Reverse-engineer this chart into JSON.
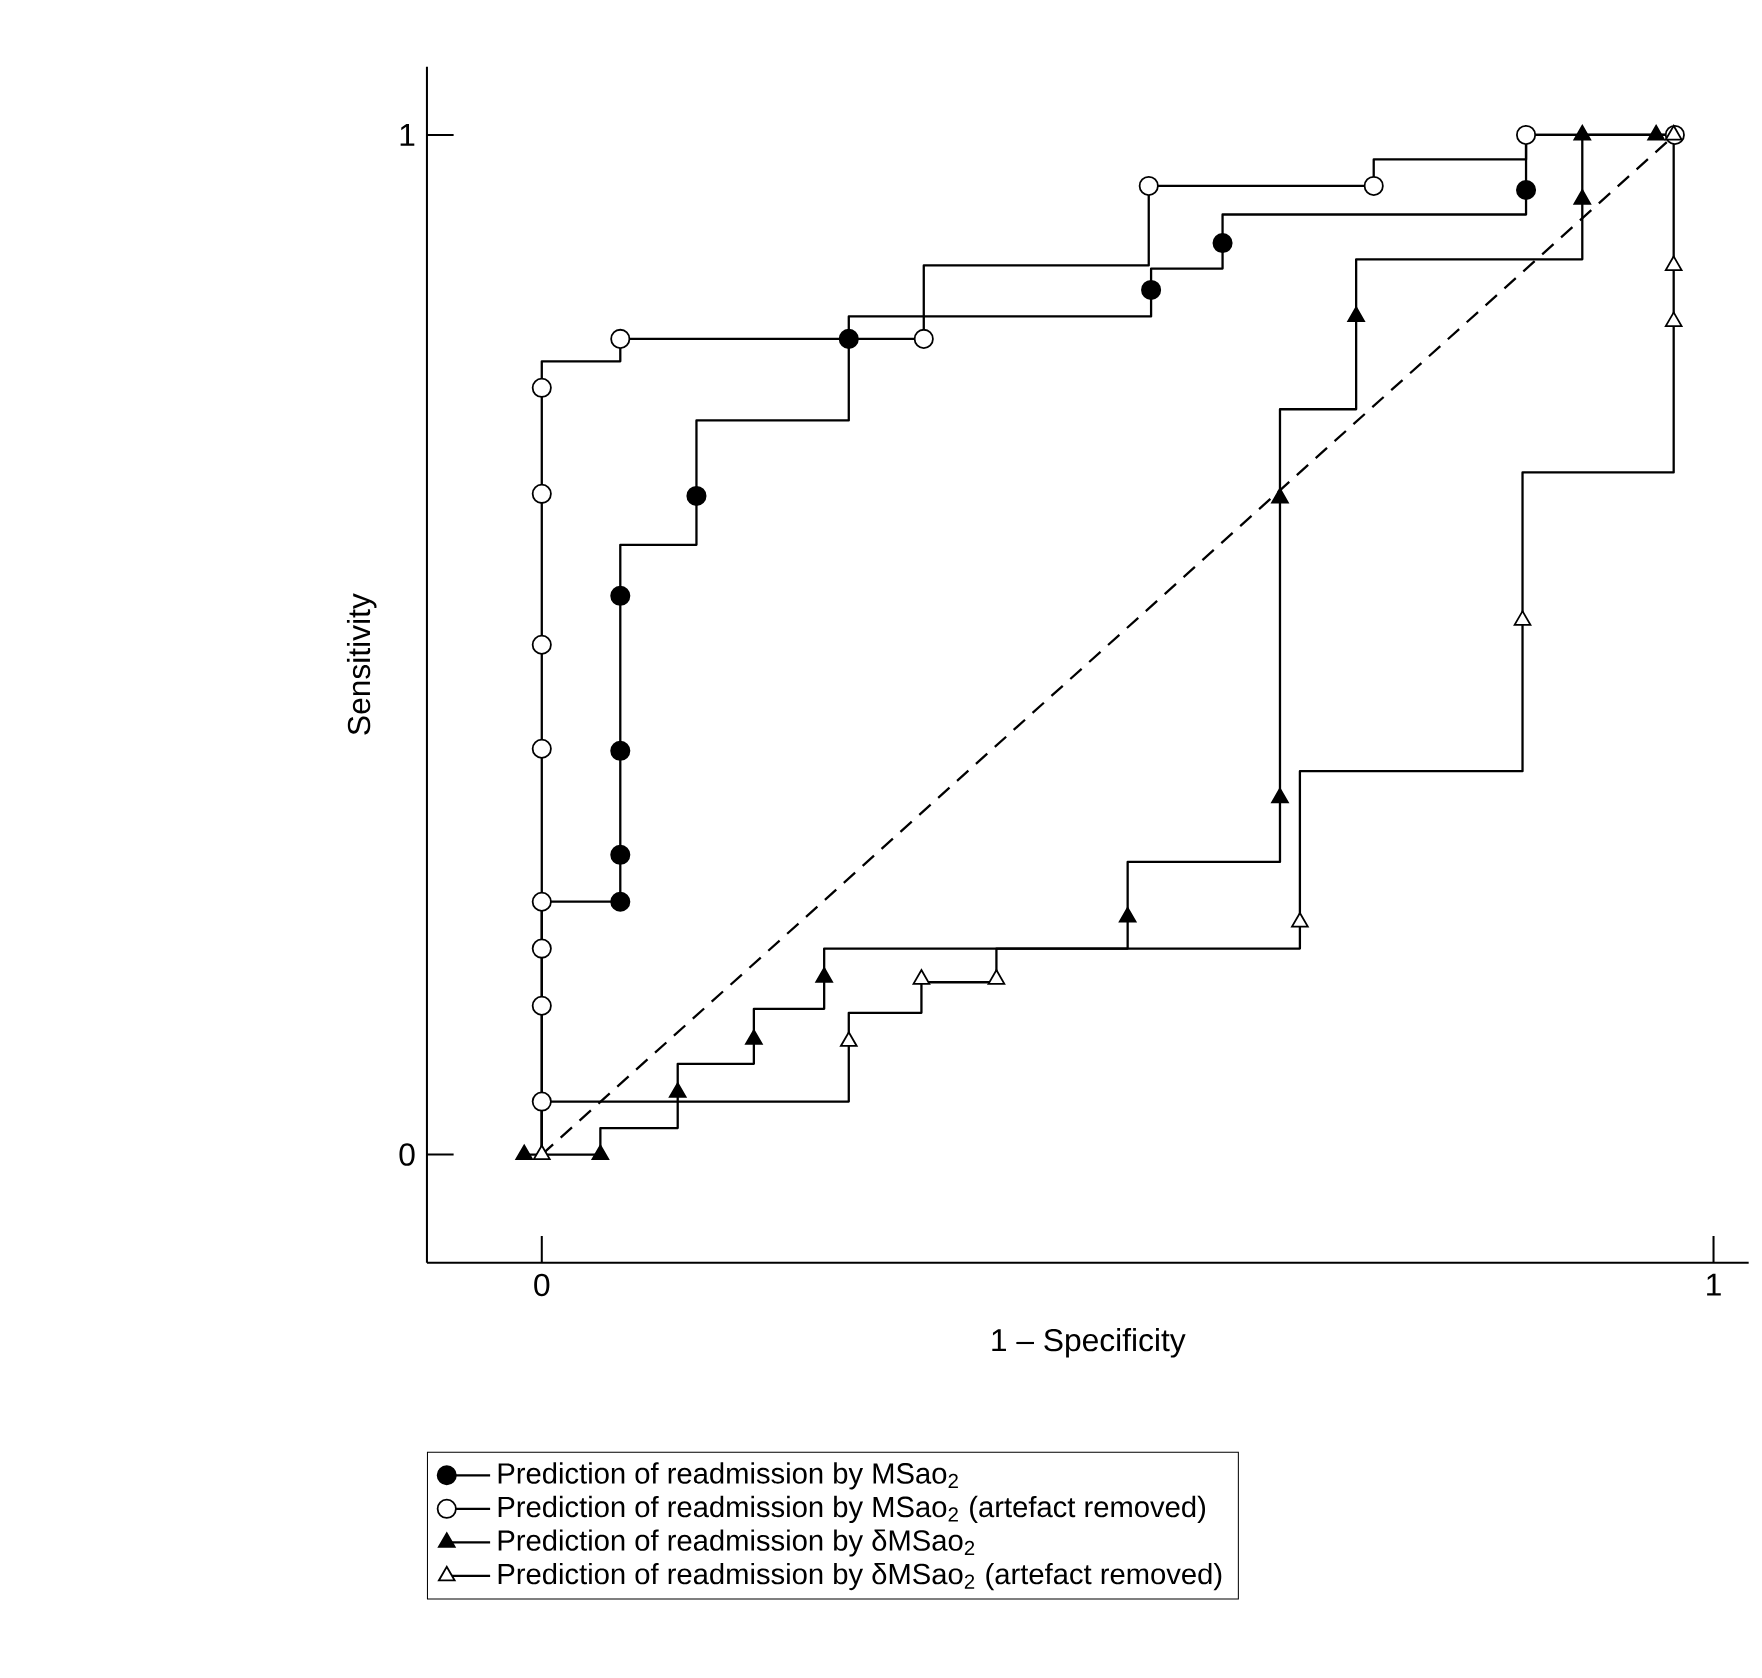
{
  "chart_data": {
    "type": "line",
    "xlabel": "1 – Specificity",
    "ylabel": "Sensitivity",
    "xlim": [
      -0.098,
      1.03
    ],
    "ylim": [
      -0.106,
      1.067
    ],
    "xticks": [
      0,
      1
    ],
    "yticks": [
      0,
      1
    ],
    "legend": "bottom",
    "series": [
      {
        "color": "#000000",
        "line_style": "dashed",
        "x": [
          0,
          0.967
        ],
        "values": [
          0,
          1
        ]
      },
      {
        "color": "#000000",
        "line_style": "solid",
        "x": [
          0,
          0,
          0.067,
          0.067,
          0.132,
          0.132,
          0.262,
          0.262,
          0.52,
          0.52,
          0.581,
          0.581,
          0.84,
          0.84,
          0.967
        ],
        "values": [
          0,
          0.248,
          0.248,
          0.598,
          0.598,
          0.72,
          0.72,
          0.822,
          0.822,
          0.869,
          0.869,
          0.922,
          0.922,
          1,
          1
        ]
      },
      {
        "color": "#000000",
        "line_style": "solid",
        "x": [
          0,
          0,
          0.067,
          0.067,
          0.326,
          0.326,
          0.518,
          0.518,
          0.71,
          0.71,
          0.84,
          0.84,
          0.967
        ],
        "values": [
          0,
          0.778,
          0.778,
          0.8,
          0.8,
          0.872,
          0.872,
          0.95,
          0.95,
          0.976,
          0.976,
          1,
          1
        ]
      },
      {
        "color": "#000000",
        "line_style": "solid",
        "x": [
          -0.015,
          0.05,
          0.05,
          0.116,
          0.116,
          0.181,
          0.181,
          0.241,
          0.241,
          0.5,
          0.5,
          0.63,
          0.63,
          0.695,
          0.695,
          0.888,
          0.888,
          0.967
        ],
        "values": [
          0,
          0,
          0.026,
          0.026,
          0.089,
          0.089,
          0.143,
          0.143,
          0.202,
          0.202,
          0.287,
          0.287,
          0.731,
          0.731,
          0.878,
          0.878,
          1,
          1
        ]
      },
      {
        "color": "#000000",
        "line_style": "solid",
        "x": [
          0,
          0,
          0.262,
          0.262,
          0.324,
          0.324,
          0.388,
          0.388,
          0.647,
          0.647,
          0.837,
          0.837,
          0.966,
          0.966
        ],
        "values": [
          0,
          0.052,
          0.052,
          0.139,
          0.139,
          0.169,
          0.169,
          0.202,
          0.202,
          0.376,
          0.376,
          0.669,
          0.669,
          1
        ]
      },
      {
        "type": "scatter",
        "name": "Prediction of readmission by MSao$_{2}$",
        "color": "#000000",
        "marker": "circle",
        "x": [
          0.067,
          0.067,
          0.067,
          0.067,
          0.132,
          0.262,
          0.52,
          0.581,
          0.84
        ],
        "values": [
          0.248,
          0.294,
          0.396,
          0.548,
          0.646,
          0.8,
          0.848,
          0.894,
          0.946
        ]
      },
      {
        "type": "scatter",
        "name": "Prediction of readmission by MSao$_{2}$ (artefact removed)",
        "color": "#000000",
        "colors": [
          "#ffffff",
          "#ffffff",
          "#ffffff",
          "#ffffff",
          "#ffffff",
          "#ffffff",
          "#ffffff",
          "#ffffff",
          "#ffffff",
          "#ffffff",
          "#ffffff",
          "#ffffff",
          "#ffffff",
          "#ffffff"
        ],
        "marker": "circle",
        "x": [
          0,
          0,
          0,
          0,
          0,
          0,
          0,
          0,
          0.067,
          0.326,
          0.518,
          0.71,
          0.84,
          0.967
        ],
        "values": [
          0.052,
          0.146,
          0.202,
          0.248,
          0.398,
          0.5,
          0.648,
          0.752,
          0.8,
          0.8,
          0.95,
          0.95,
          1,
          1
        ]
      },
      {
        "type": "scatter",
        "name": "Prediction of readmission by δMSao$_{2}$",
        "color": "#000000",
        "marker": "triangle",
        "x": [
          -0.015,
          0.05,
          0.116,
          0.181,
          0.241,
          0.5,
          0.63,
          0.63,
          0.695,
          0.888,
          0.888,
          0.951
        ],
        "values": [
          0,
          0,
          0.061,
          0.113,
          0.174,
          0.233,
          0.35,
          0.644,
          0.822,
          0.937,
          1,
          1
        ]
      },
      {
        "type": "scatter",
        "name": "Prediction of readmission by δMSao$_{2}$ (artefact removed)",
        "color": "#000000",
        "colors": [
          "#ffffff",
          "#ffffff",
          "#ffffff",
          "#ffffff",
          "#ffffff",
          "#ffffff",
          "#ffffff",
          "#ffffff",
          "#ffffff"
        ],
        "marker": "triangle",
        "x": [
          0,
          0.262,
          0.324,
          0.388,
          0.647,
          0.837,
          0.966,
          0.966,
          0.966
        ],
        "values": [
          0,
          0.111,
          0.172,
          0.172,
          0.228,
          0.524,
          0.817,
          0.872,
          1
        ]
      }
    ]
  }
}
